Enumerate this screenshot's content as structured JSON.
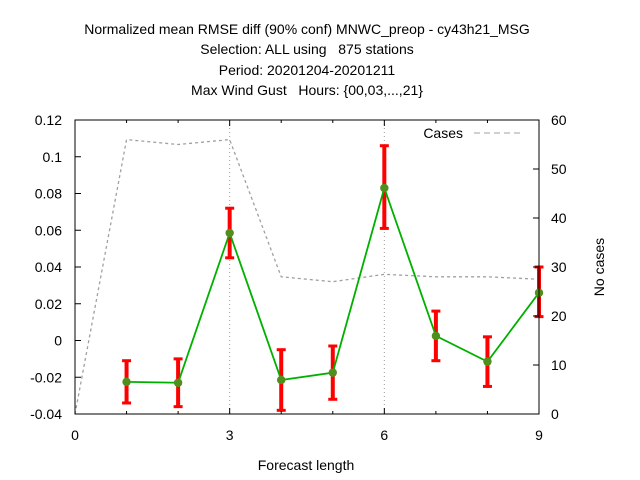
{
  "chart_data": {
    "type": "line",
    "title_lines": [
      "Normalized mean RMSE diff (90% conf) MNWC_preop - cy43h21_MSG",
      "Selection: ALL using   875 stations",
      "Period: 20201204-20201211",
      "Max Wind Gust   Hours: {00,03,...,21}"
    ],
    "xlabel": "Forecast length",
    "ylabel": "",
    "y2label": "No cases",
    "xlim": [
      0,
      9
    ],
    "ylim": [
      -0.04,
      0.12
    ],
    "y2lim": [
      0,
      60
    ],
    "xticks": [
      "0",
      "3",
      "6",
      "9"
    ],
    "yticks": [
      "-0.04",
      "-0.02",
      "0",
      "0.02",
      "0.04",
      "0.06",
      "0.08",
      "0.1",
      "0.12"
    ],
    "y2ticks": [
      "0",
      "10",
      "20",
      "30",
      "40",
      "50",
      "60"
    ],
    "grid": "vertical at x = 3 and x = 6",
    "legend": {
      "label": "Cases",
      "placement": "top-right"
    },
    "colors": {
      "series": "#00b000",
      "marker": "#4e8f1e",
      "errorbar": "#ff0000",
      "cases": "#a0a0a0"
    },
    "series": [
      {
        "values": [
          {
            "x": 1,
            "y": -0.0225,
            "lo": -0.034,
            "hi": -0.011
          },
          {
            "x": 2,
            "y": -0.023,
            "lo": -0.036,
            "hi": -0.01
          },
          {
            "x": 3,
            "y": 0.0585,
            "lo": 0.045,
            "hi": 0.072
          },
          {
            "x": 4,
            "y": -0.0215,
            "lo": -0.038,
            "hi": -0.005
          },
          {
            "x": 5,
            "y": -0.0175,
            "lo": -0.032,
            "hi": -0.003
          },
          {
            "x": 6,
            "y": 0.083,
            "lo": 0.061,
            "hi": 0.106
          },
          {
            "x": 7,
            "y": 0.0025,
            "lo": -0.011,
            "hi": 0.016
          },
          {
            "x": 8,
            "y": -0.0115,
            "lo": -0.025,
            "hi": 0.002
          },
          {
            "x": 9,
            "y": 0.026,
            "lo": 0.013,
            "hi": 0.04
          }
        ]
      },
      {
        "name": "Cases",
        "axis": "y2",
        "values": [
          {
            "x": 0,
            "y": 0
          },
          {
            "x": 1,
            "y": 56
          },
          {
            "x": 2,
            "y": 55
          },
          {
            "x": 3,
            "y": 56
          },
          {
            "x": 4,
            "y": 28
          },
          {
            "x": 5,
            "y": 27
          },
          {
            "x": 6,
            "y": 28.5
          },
          {
            "x": 7,
            "y": 28
          },
          {
            "x": 8,
            "y": 28
          },
          {
            "x": 9,
            "y": 27.5
          }
        ]
      }
    ]
  }
}
